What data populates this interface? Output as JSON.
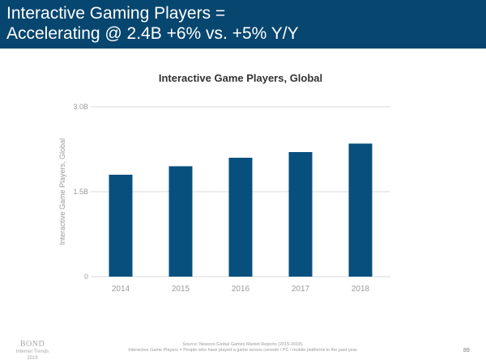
{
  "slide": {
    "title_line1": "Interactive Gaming Players =",
    "title_line2": "Accelerating @ 2.4B +6% vs. +5% Y/Y",
    "source": "Source: Newzoo Global Games Market Reports (2015-2018).",
    "definition": "Interactive Game Players = People who have played a game across console / PC / mobile platforms in the past year.",
    "logo_name": "BOND",
    "logo_line1": "Internet Trends",
    "logo_line2": "2019",
    "page_number": "89"
  },
  "colors": {
    "header_bg": "#07466f",
    "bar": "#07507e",
    "grid": "#d9d9d9",
    "tick_text": "#9a9a9a"
  },
  "chart_data": {
    "type": "bar",
    "title": "Interactive Game Players, Global",
    "ylabel": "Interactive Game Players, Global",
    "xlabel": "",
    "categories": [
      "2014",
      "2015",
      "2016",
      "2017",
      "2018"
    ],
    "values": [
      1.8,
      1.95,
      2.1,
      2.2,
      2.35
    ],
    "ylim": [
      0,
      3.0
    ],
    "yticks": [
      0,
      1.5,
      3.0
    ],
    "ytick_labels": [
      "0",
      "1.5B",
      "3.0B"
    ],
    "grid": true,
    "legend": "none"
  }
}
